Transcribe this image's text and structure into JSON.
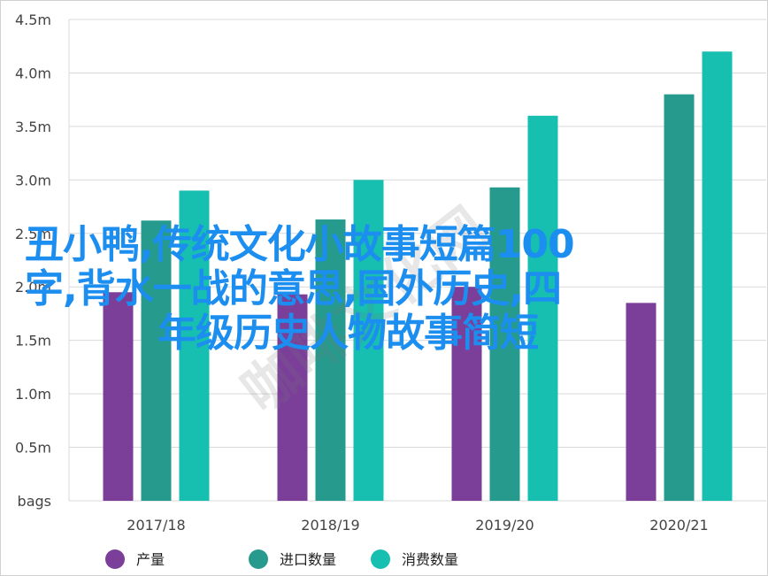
{
  "chart_data": {
    "type": "bar",
    "categories": [
      "2017/18",
      "2018/19",
      "2019/20",
      "2020/21"
    ],
    "series": [
      {
        "name": "产量",
        "color": "#7b3f99",
        "values": [
          1.95,
          1.93,
          2.0,
          1.85
        ]
      },
      {
        "name": "进口数量",
        "color": "#259a8d",
        "values": [
          2.62,
          2.63,
          2.93,
          3.8
        ]
      },
      {
        "name": "消费数量",
        "color": "#16bfb0",
        "values": [
          2.9,
          3.0,
          3.6,
          4.2
        ]
      }
    ],
    "y_ticks": [
      "bags",
      "0.5m",
      "1.0m",
      "1.5m",
      "2.0m",
      "2.5m",
      "3.0m",
      "3.5m",
      "4.0m",
      "4.5m"
    ],
    "ylim": [
      0,
      4.5
    ],
    "grid": true,
    "legend_position": "bottom"
  },
  "overlay": {
    "line1": "丑小鸭,传统文化小故事短篇100",
    "line2": "字,背水一战的意思,国外历史,四",
    "line3": "年级历史人物故事简短"
  },
  "watermark": "咖啡文化网"
}
